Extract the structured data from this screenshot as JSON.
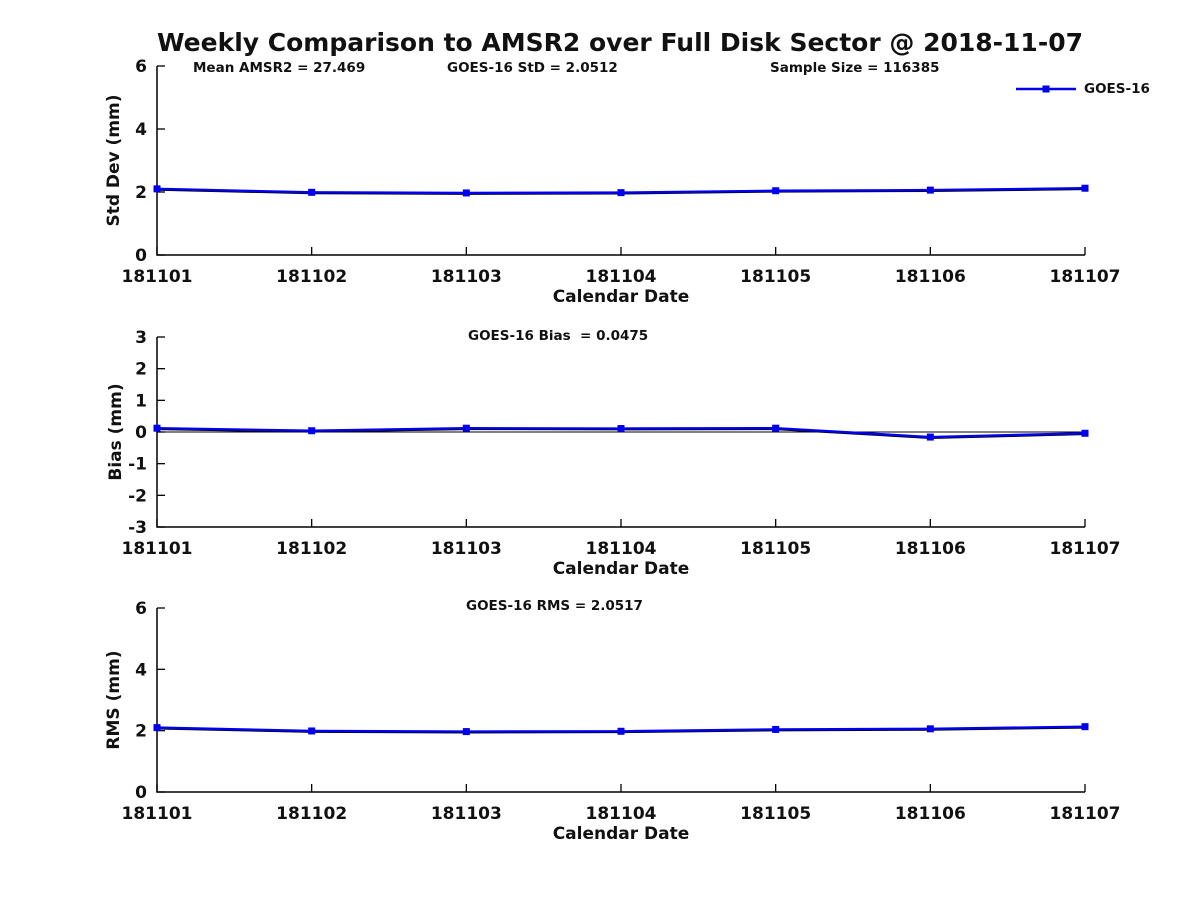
{
  "title": "Weekly Comparison to AMSR2 over Full Disk Sector @ 2018-11-07",
  "annotations": {
    "mean_amsr2": "Mean AMSR2 = 27.469",
    "goes_std": "GOES-16 StD = 2.0512",
    "sample_size": "Sample Size = 116385",
    "goes_bias": "GOES-16 Bias  = 0.0475",
    "goes_rms": "GOES-16 RMS = 2.0517"
  },
  "legend": {
    "label": "GOES-16",
    "color": "#0000ee",
    "marker": "filled-square"
  },
  "colors": {
    "series_line": "#0000ee",
    "series_underlay": "#000000",
    "axis": "#000000",
    "text": "#111111"
  },
  "chart_data": [
    {
      "type": "line",
      "name": "std-dev",
      "xlabel": "Calendar Date",
      "ylabel": "Std Dev (mm)",
      "categories": [
        "181101",
        "181102",
        "181103",
        "181104",
        "181105",
        "181106",
        "181107"
      ],
      "series": [
        {
          "name": "GOES-16",
          "values": [
            2.1,
            1.99,
            1.97,
            1.98,
            2.04,
            2.06,
            2.12
          ]
        }
      ],
      "ylim": [
        0,
        6
      ],
      "yticks": [
        0,
        2,
        4,
        6
      ],
      "zero_line": false,
      "grid": false,
      "legend_position": "top-right-outside"
    },
    {
      "type": "line",
      "name": "bias",
      "xlabel": "Calendar Date",
      "ylabel": "Bias (mm)",
      "categories": [
        "181101",
        "181102",
        "181103",
        "181104",
        "181105",
        "181106",
        "181107"
      ],
      "series": [
        {
          "name": "GOES-16",
          "values": [
            0.12,
            0.04,
            0.12,
            0.11,
            0.12,
            -0.16,
            -0.04
          ]
        }
      ],
      "ylim": [
        -3,
        3
      ],
      "yticks": [
        -3,
        -2,
        -1,
        0,
        1,
        2,
        3
      ],
      "zero_line": true,
      "grid": false,
      "legend_position": null
    },
    {
      "type": "line",
      "name": "rms",
      "xlabel": "Calendar Date",
      "ylabel": "RMS (mm)",
      "categories": [
        "181101",
        "181102",
        "181103",
        "181104",
        "181105",
        "181106",
        "181107"
      ],
      "series": [
        {
          "name": "GOES-16",
          "values": [
            2.1,
            1.99,
            1.97,
            1.98,
            2.04,
            2.06,
            2.13
          ]
        }
      ],
      "ylim": [
        0,
        6
      ],
      "yticks": [
        0,
        2,
        4,
        6
      ],
      "zero_line": false,
      "grid": false,
      "legend_position": null
    }
  ]
}
